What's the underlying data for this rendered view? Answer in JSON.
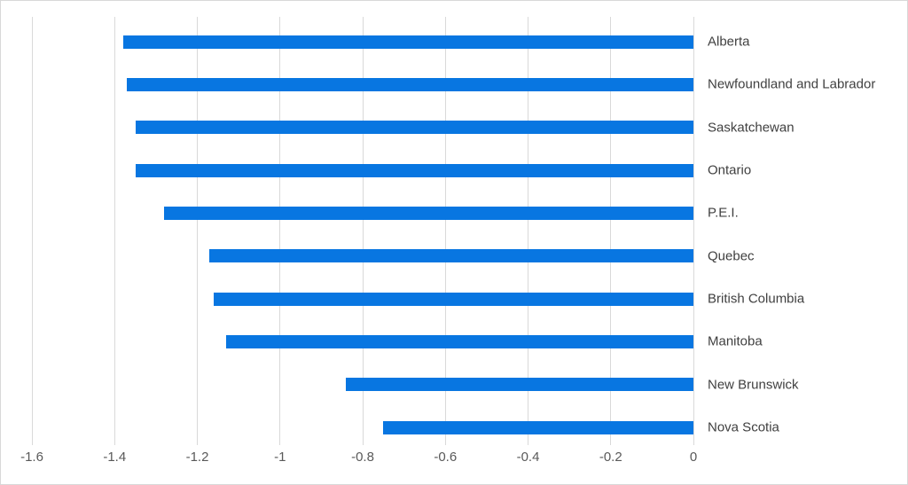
{
  "chart_data": {
    "type": "bar",
    "orientation": "horizontal",
    "categories": [
      "Alberta",
      "Newfoundland and Labrador",
      "Saskatchewan",
      "Ontario",
      "P.E.I.",
      "Quebec",
      "British Columbia",
      "Manitoba",
      "New Brunswick",
      "Nova Scotia"
    ],
    "values": [
      -1.38,
      -1.37,
      -1.35,
      -1.35,
      -1.28,
      -1.17,
      -1.16,
      -1.13,
      -0.84,
      -0.75
    ],
    "xlim": [
      -1.6,
      0
    ],
    "x_ticks": [
      -1.6,
      -1.4,
      -1.2,
      -1.0,
      -0.8,
      -0.6,
      -0.4,
      -0.2,
      0
    ],
    "x_tick_labels": [
      "-1.6",
      "-1.4",
      "-1.2",
      "-1",
      "-0.8",
      "-0.6",
      "-0.4",
      "-0.2",
      "0"
    ],
    "grid": true,
    "legend": "none",
    "category_label_position": "right-of-zero-line",
    "colors": {
      "bar": "#0876E1",
      "gridline": "#D9D9D9",
      "category_label": "#404040",
      "tick_label": "#595959",
      "background": "#FFFFFF",
      "frame_border": "#D8D8D8"
    }
  }
}
